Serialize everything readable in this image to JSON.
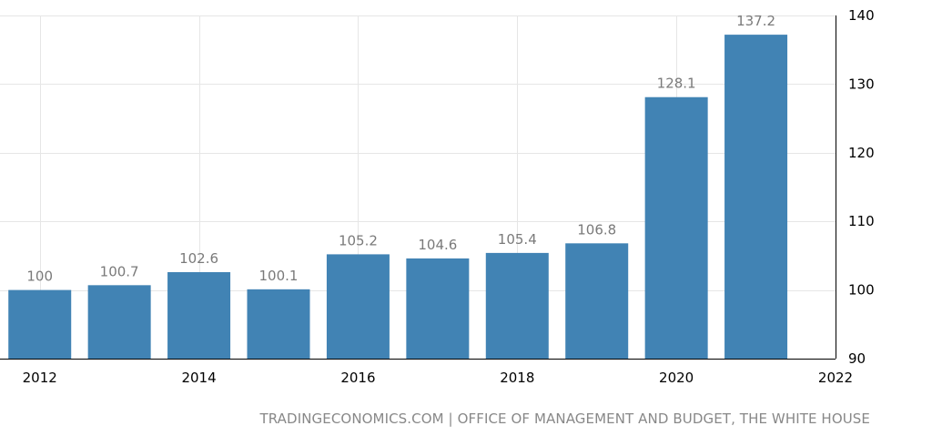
{
  "chart_data": {
    "type": "bar",
    "x": [
      2012,
      2013,
      2014,
      2015,
      2016,
      2017,
      2018,
      2019,
      2020,
      2021
    ],
    "values": [
      100,
      100.7,
      102.6,
      100.1,
      105.2,
      104.6,
      105.4,
      106.8,
      128.1,
      137.2
    ],
    "value_labels": [
      "100",
      "100.7",
      "102.6",
      "100.1",
      "105.2",
      "104.6",
      "105.4",
      "106.8",
      "128.1",
      "137.2"
    ],
    "x_ticks": [
      "2012",
      "2014",
      "2016",
      "2018",
      "2020",
      "2022"
    ],
    "y_ticks": [
      "90",
      "100",
      "110",
      "120",
      "130",
      "140"
    ],
    "xlim": [
      2011.5,
      2022
    ],
    "ylim": [
      90,
      140
    ],
    "y_axis_side": "right",
    "grid": true,
    "bar_color": "#4183b4",
    "title": "",
    "xlabel": "",
    "ylabel": ""
  },
  "source": "TRADINGECONOMICS.COM | OFFICE OF MANAGEMENT AND BUDGET, THE WHITE HOUSE"
}
